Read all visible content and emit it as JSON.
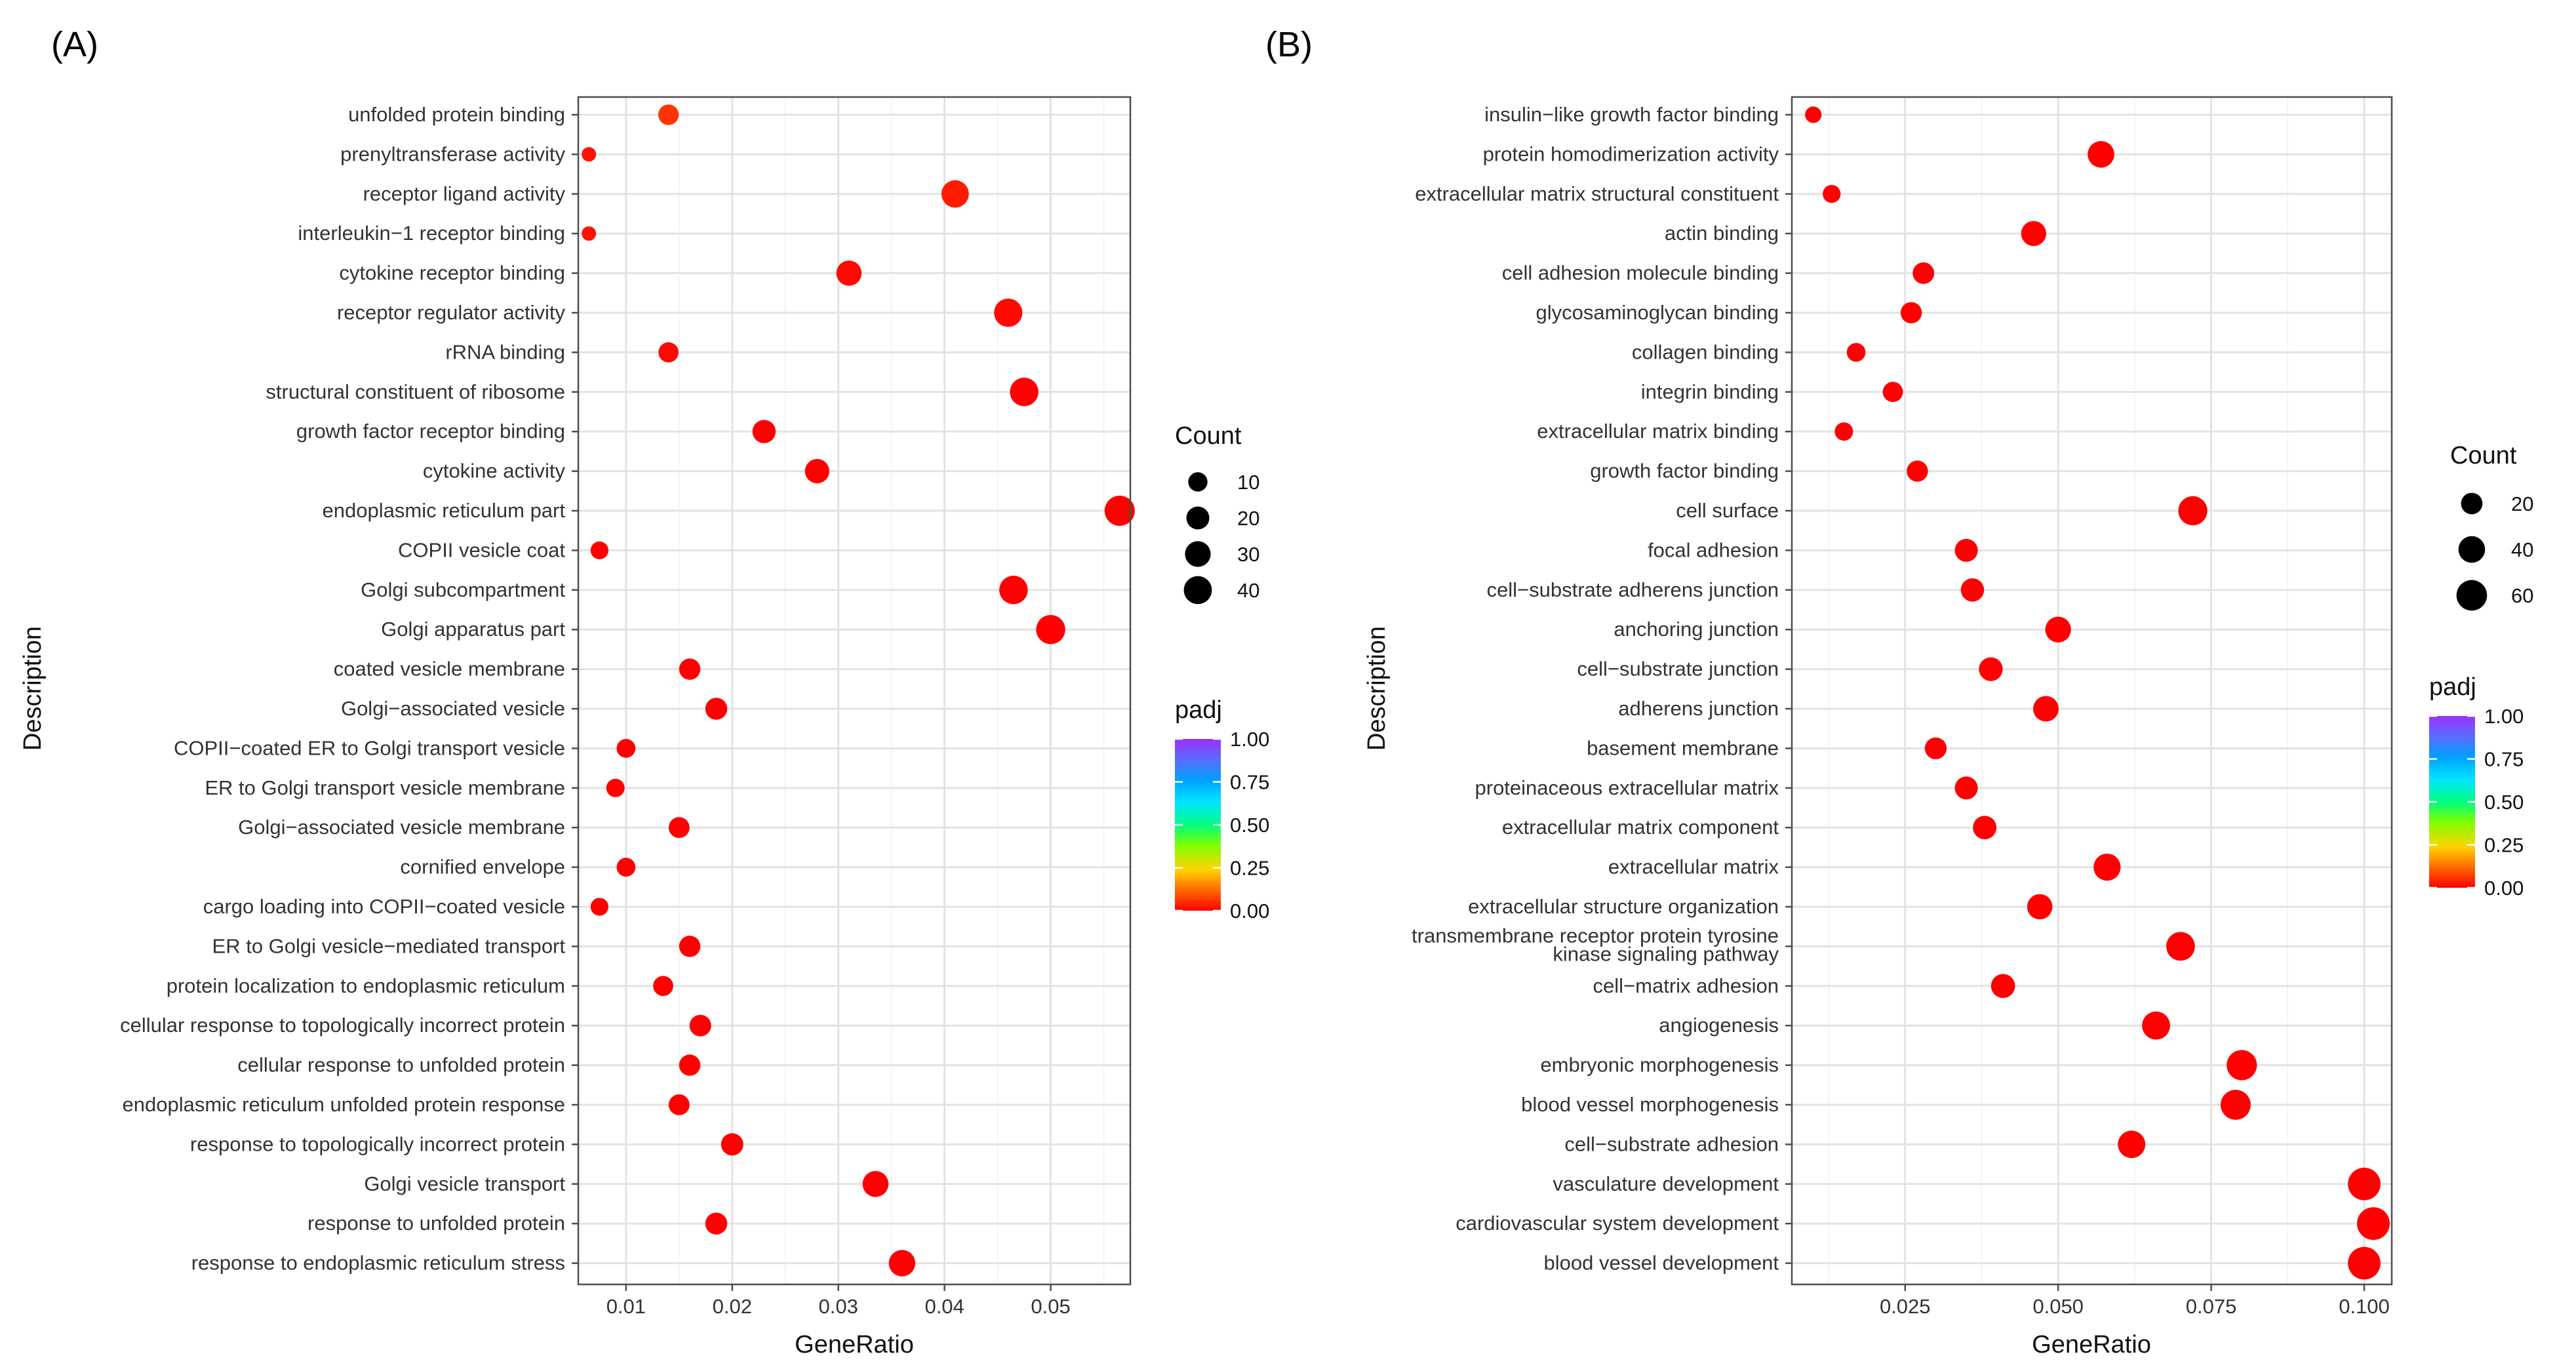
{
  "chart_data": [
    {
      "panel": "(A)",
      "type": "scatter",
      "xlabel": "GeneRatio",
      "ylabel": "Description",
      "xlim": [
        0.0055,
        0.0575
      ],
      "xticks": [
        0.01,
        0.02,
        0.03,
        0.04,
        0.05
      ],
      "xtick_labels": [
        "0.01",
        "0.02",
        "0.03",
        "0.04",
        "0.05"
      ],
      "size_legend": {
        "title": "Count",
        "values": [
          10,
          20,
          30,
          40
        ],
        "labels": [
          "10",
          "20",
          "30",
          "40"
        ]
      },
      "color_legend": {
        "title": "padj",
        "ticks": [
          0,
          0.25,
          0.5,
          0.75,
          1.0
        ],
        "labels": [
          "0.00",
          "0.25",
          "0.50",
          "0.75",
          "1.00"
        ]
      },
      "points": [
        {
          "description": "unfolded protein binding",
          "gene_ratio": 0.014,
          "count": 13,
          "padj": 0.06
        },
        {
          "description": "prenyltransferase activity",
          "gene_ratio": 0.0065,
          "count": 2,
          "padj": 0.02
        },
        {
          "description": "receptor ligand activity",
          "gene_ratio": 0.041,
          "count": 37,
          "padj": 0.03
        },
        {
          "description": "interleukin−1 receptor binding",
          "gene_ratio": 0.0065,
          "count": 2,
          "padj": 0.02
        },
        {
          "description": "cytokine receptor binding",
          "gene_ratio": 0.031,
          "count": 28,
          "padj": 0.01
        },
        {
          "description": "receptor regulator activity",
          "gene_ratio": 0.046,
          "count": 41,
          "padj": 0.01
        },
        {
          "description": "rRNA binding",
          "gene_ratio": 0.014,
          "count": 12,
          "padj": 0.01
        },
        {
          "description": "structural constituent of ribosome",
          "gene_ratio": 0.0475,
          "count": 42,
          "padj": 0.0
        },
        {
          "description": "growth factor receptor binding",
          "gene_ratio": 0.023,
          "count": 21,
          "padj": 0.0
        },
        {
          "description": "cytokine activity",
          "gene_ratio": 0.028,
          "count": 25,
          "padj": 0.0
        },
        {
          "description": "endoplasmic reticulum part",
          "gene_ratio": 0.0565,
          "count": 50,
          "padj": 0.0
        },
        {
          "description": "COPII vesicle coat",
          "gene_ratio": 0.0075,
          "count": 7,
          "padj": 0.0
        },
        {
          "description": "Golgi subcompartment",
          "gene_ratio": 0.0465,
          "count": 42,
          "padj": 0.0
        },
        {
          "description": "Golgi apparatus part",
          "gene_ratio": 0.05,
          "count": 45,
          "padj": 0.0
        },
        {
          "description": "coated vesicle membrane",
          "gene_ratio": 0.016,
          "count": 15,
          "padj": 0.0
        },
        {
          "description": "Golgi−associated vesicle",
          "gene_ratio": 0.0185,
          "count": 17,
          "padj": 0.0
        },
        {
          "description": "COPII−coated ER to Golgi transport vesicle",
          "gene_ratio": 0.01,
          "count": 9,
          "padj": 0.0
        },
        {
          "description": "ER to Golgi transport vesicle membrane",
          "gene_ratio": 0.009,
          "count": 8,
          "padj": 0.0
        },
        {
          "description": "Golgi−associated vesicle membrane",
          "gene_ratio": 0.015,
          "count": 14,
          "padj": 0.0
        },
        {
          "description": "cornified envelope",
          "gene_ratio": 0.01,
          "count": 9,
          "padj": 0.0
        },
        {
          "description": "cargo loading into COPII−coated vesicle",
          "gene_ratio": 0.0075,
          "count": 7,
          "padj": 0.0
        },
        {
          "description": "ER to Golgi vesicle−mediated transport",
          "gene_ratio": 0.016,
          "count": 15,
          "padj": 0.0
        },
        {
          "description": "protein localization to endoplasmic reticulum",
          "gene_ratio": 0.0135,
          "count": 12,
          "padj": 0.0
        },
        {
          "description": "cellular response to topologically incorrect protein",
          "gene_ratio": 0.017,
          "count": 16,
          "padj": 0.0
        },
        {
          "description": "cellular response to unfolded protein",
          "gene_ratio": 0.016,
          "count": 15,
          "padj": 0.0
        },
        {
          "description": "endoplasmic reticulum unfolded protein response",
          "gene_ratio": 0.015,
          "count": 14,
          "padj": 0.0
        },
        {
          "description": "response to topologically incorrect protein",
          "gene_ratio": 0.02,
          "count": 18,
          "padj": 0.0
        },
        {
          "description": "Golgi vesicle transport",
          "gene_ratio": 0.0335,
          "count": 31,
          "padj": 0.0
        },
        {
          "description": "response to unfolded protein",
          "gene_ratio": 0.0185,
          "count": 17,
          "padj": 0.0
        },
        {
          "description": "response to endoplasmic reticulum stress",
          "gene_ratio": 0.036,
          "count": 33,
          "padj": 0.0
        }
      ]
    },
    {
      "panel": "(B)",
      "type": "scatter",
      "xlabel": "GeneRatio",
      "ylabel": "Description",
      "xlim": [
        0.0065,
        0.1045
      ],
      "xticks": [
        0.025,
        0.05,
        0.075,
        0.1
      ],
      "xtick_labels": [
        "0.025",
        "0.050",
        "0.075",
        "0.100"
      ],
      "size_legend": {
        "title": "Count",
        "values": [
          20,
          40,
          60
        ],
        "labels": [
          "20",
          "40",
          "60"
        ]
      },
      "color_legend": {
        "title": "padj",
        "ticks": [
          0,
          0.25,
          0.5,
          0.75,
          1.0
        ],
        "labels": [
          "0.00",
          "0.25",
          "0.50",
          "0.75",
          "1.00"
        ]
      },
      "points": [
        {
          "description": "insulin−like growth factor binding",
          "gene_ratio": 0.01,
          "count": 7,
          "padj": 0.0
        },
        {
          "description": "protein homodimerization activity",
          "gene_ratio": 0.057,
          "count": 40,
          "padj": 0.0
        },
        {
          "description": "extracellular matrix structural constituent",
          "gene_ratio": 0.013,
          "count": 10,
          "padj": 0.0
        },
        {
          "description": "actin binding",
          "gene_ratio": 0.046,
          "count": 33,
          "padj": 0.0
        },
        {
          "description": "cell adhesion molecule binding",
          "gene_ratio": 0.028,
          "count": 20,
          "padj": 0.0
        },
        {
          "description": "glycosaminoglycan binding",
          "gene_ratio": 0.026,
          "count": 19,
          "padj": 0.0
        },
        {
          "description": "collagen binding",
          "gene_ratio": 0.017,
          "count": 12,
          "padj": 0.0
        },
        {
          "description": "integrin binding",
          "gene_ratio": 0.023,
          "count": 16,
          "padj": 0.0
        },
        {
          "description": "extracellular matrix binding",
          "gene_ratio": 0.015,
          "count": 11,
          "padj": 0.0
        },
        {
          "description": "growth factor binding",
          "gene_ratio": 0.027,
          "count": 19,
          "padj": 0.0
        },
        {
          "description": "cell surface",
          "gene_ratio": 0.072,
          "count": 52,
          "padj": 0.0
        },
        {
          "description": "focal adhesion",
          "gene_ratio": 0.035,
          "count": 25,
          "padj": 0.0
        },
        {
          "description": "cell−substrate adherens junction",
          "gene_ratio": 0.036,
          "count": 26,
          "padj": 0.0
        },
        {
          "description": "anchoring junction",
          "gene_ratio": 0.05,
          "count": 36,
          "padj": 0.0
        },
        {
          "description": "cell−substrate junction",
          "gene_ratio": 0.039,
          "count": 28,
          "padj": 0.0
        },
        {
          "description": "adherens junction",
          "gene_ratio": 0.048,
          "count": 35,
          "padj": 0.0
        },
        {
          "description": "basement membrane",
          "gene_ratio": 0.03,
          "count": 21,
          "padj": 0.0
        },
        {
          "description": "proteinaceous extracellular matrix",
          "gene_ratio": 0.035,
          "count": 25,
          "padj": 0.0
        },
        {
          "description": "extracellular matrix component",
          "gene_ratio": 0.038,
          "count": 27,
          "padj": 0.0
        },
        {
          "description": "extracellular matrix",
          "gene_ratio": 0.058,
          "count": 42,
          "padj": 0.0
        },
        {
          "description": "extracellular structure organization",
          "gene_ratio": 0.047,
          "count": 34,
          "padj": 0.0
        },
        {
          "description": "transmembrane receptor protein tyrosine kinase signaling pathway",
          "label_lines": [
            "transmembrane receptor protein tyrosine",
            "kinase signaling pathway"
          ],
          "gene_ratio": 0.07,
          "count": 50,
          "padj": 0.0
        },
        {
          "description": "cell−matrix adhesion",
          "gene_ratio": 0.041,
          "count": 29,
          "padj": 0.0
        },
        {
          "description": "angiogenesis",
          "gene_ratio": 0.066,
          "count": 47,
          "padj": 0.0
        },
        {
          "description": "embryonic morphogenesis",
          "gene_ratio": 0.08,
          "count": 58,
          "padj": 0.0
        },
        {
          "description": "blood vessel morphogenesis",
          "gene_ratio": 0.079,
          "count": 57,
          "padj": 0.0
        },
        {
          "description": "cell−substrate adhesion",
          "gene_ratio": 0.062,
          "count": 44,
          "padj": 0.0
        },
        {
          "description": "vasculature development",
          "gene_ratio": 0.1,
          "count": 72,
          "padj": 0.0
        },
        {
          "description": "cardiovascular system development",
          "gene_ratio": 0.1015,
          "count": 73,
          "padj": 0.0
        },
        {
          "description": "blood vessel development",
          "gene_ratio": 0.1,
          "count": 72,
          "padj": 0.0
        }
      ]
    }
  ]
}
